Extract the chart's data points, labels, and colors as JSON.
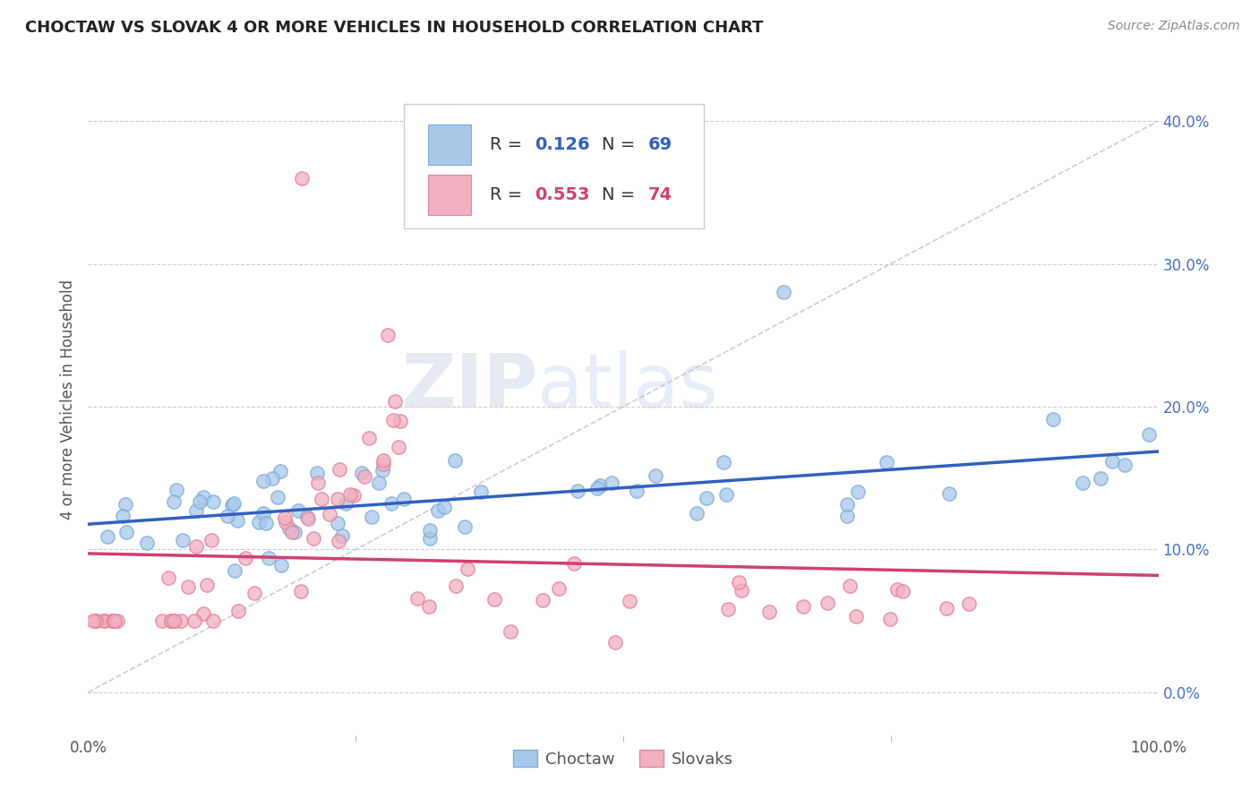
{
  "title": "CHOCTAW VS SLOVAK 4 OR MORE VEHICLES IN HOUSEHOLD CORRELATION CHART",
  "source": "Source: ZipAtlas.com",
  "ylabel": "4 or more Vehicles in Household",
  "xlim": [
    0,
    100
  ],
  "ylim": [
    -3,
    44
  ],
  "yticks": [
    0,
    10,
    20,
    30,
    40
  ],
  "ytick_labels": [
    "0.0%",
    "10.0%",
    "20.0%",
    "30.0%",
    "40.0%"
  ],
  "xtick_labels": [
    "0.0%",
    "100.0%"
  ],
  "grid_color": "#cccccc",
  "background_color": "#ffffff",
  "choctaw_color": "#a8c8e8",
  "slovak_color": "#f0b0c0",
  "choctaw_edge_color": "#7aade0",
  "slovak_edge_color": "#e88098",
  "choctaw_line_color": "#3060c0",
  "slovak_line_color": "#d04070",
  "diag_color": "#c0c0c0",
  "choctaw_R": 0.126,
  "choctaw_N": 69,
  "slovak_R": 0.553,
  "slovak_N": 74,
  "watermark_zip": "ZIP",
  "watermark_atlas": "atlas",
  "choctaw_x": [
    1.5,
    2.0,
    2.5,
    3.0,
    3.5,
    4.0,
    4.5,
    5.0,
    5.2,
    5.5,
    5.8,
    6.0,
    6.2,
    6.5,
    7.0,
    7.2,
    7.5,
    8.0,
    8.5,
    9.0,
    9.5,
    10.0,
    10.5,
    11.0,
    11.5,
    12.0,
    12.5,
    13.0,
    14.0,
    15.0,
    16.0,
    17.0,
    18.0,
    19.0,
    20.0,
    21.0,
    22.0,
    22.5,
    23.0,
    24.0,
    25.0,
    26.0,
    27.0,
    28.0,
    29.0,
    30.0,
    32.0,
    33.0,
    35.0,
    37.0,
    38.0,
    40.0,
    42.0,
    45.0,
    47.0,
    50.0,
    52.0,
    55.0,
    58.0,
    60.0,
    62.0,
    65.0,
    68.0,
    70.0,
    75.0,
    80.0,
    85.0,
    92.0,
    100.0
  ],
  "choctaw_y": [
    12.0,
    13.5,
    11.0,
    14.0,
    10.0,
    11.5,
    13.0,
    12.0,
    10.5,
    14.5,
    11.0,
    13.0,
    12.5,
    11.0,
    15.0,
    12.0,
    13.0,
    11.5,
    14.0,
    12.5,
    11.0,
    13.5,
    15.0,
    12.0,
    14.0,
    11.5,
    13.0,
    14.5,
    11.0,
    14.0,
    12.5,
    13.5,
    12.0,
    11.0,
    13.0,
    14.0,
    12.5,
    15.0,
    13.0,
    11.5,
    14.5,
    12.0,
    13.5,
    11.0,
    14.0,
    12.0,
    13.5,
    11.0,
    12.5,
    14.0,
    9.0,
    13.0,
    11.5,
    14.0,
    12.0,
    11.0,
    13.5,
    12.0,
    8.5,
    14.0,
    11.0,
    28.0,
    10.5,
    14.0,
    7.5,
    13.0,
    12.0,
    13.5,
    15.5
  ],
  "slovak_x": [
    0.5,
    1.0,
    1.5,
    2.0,
    2.5,
    3.0,
    3.2,
    3.5,
    3.8,
    4.0,
    4.2,
    4.5,
    5.0,
    5.2,
    5.5,
    6.0,
    6.2,
    6.5,
    7.0,
    7.5,
    8.0,
    8.5,
    9.0,
    9.5,
    10.0,
    10.5,
    11.0,
    11.5,
    12.0,
    12.5,
    13.0,
    13.5,
    14.0,
    15.0,
    16.0,
    17.0,
    18.0,
    19.0,
    20.0,
    21.0,
    22.0,
    23.0,
    24.0,
    25.0,
    26.0,
    27.0,
    28.0,
    29.0,
    30.0,
    32.0,
    33.0,
    35.0,
    37.0,
    40.0,
    43.0,
    45.0,
    50.0,
    55.0,
    60.0,
    65.0,
    70.0,
    75.0,
    80.0,
    85.0,
    90.0,
    15.0,
    18.0,
    20.0,
    22.0,
    25.0,
    27.0,
    30.0,
    32.0,
    35.0
  ],
  "slovak_y": [
    8.0,
    7.5,
    9.0,
    8.5,
    9.5,
    8.0,
    9.0,
    10.0,
    8.5,
    9.5,
    8.0,
    9.0,
    10.0,
    8.5,
    9.5,
    10.5,
    9.0,
    10.0,
    11.0,
    9.5,
    10.0,
    11.5,
    10.0,
    11.0,
    10.5,
    12.0,
    11.5,
    13.0,
    12.0,
    13.5,
    13.0,
    14.0,
    15.0,
    16.0,
    17.0,
    18.5,
    20.0,
    22.0,
    24.0,
    26.0,
    36.0,
    25.0,
    22.0,
    18.0,
    16.0,
    15.0,
    14.0,
    13.0,
    12.0,
    10.0,
    9.0,
    8.0,
    7.5,
    7.0,
    6.5,
    6.0,
    5.5,
    5.0,
    4.5,
    4.0,
    3.5,
    3.5,
    4.0,
    3.5,
    4.0,
    9.0,
    11.0,
    10.0,
    8.5,
    8.0,
    7.5,
    7.0,
    6.5,
    6.0
  ]
}
